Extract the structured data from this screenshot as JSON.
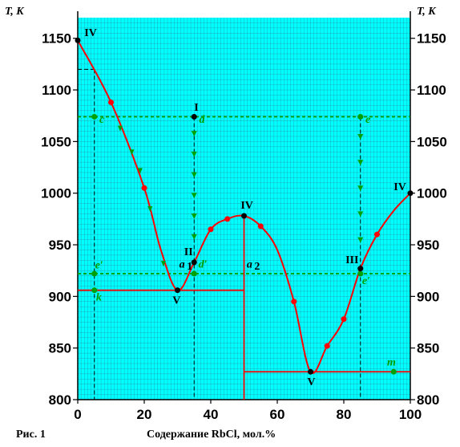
{
  "chart_data": {
    "type": "line",
    "y_axis_label_left": "T, K",
    "y_axis_label_right": "T, K",
    "xlabel": "Содержание RbCl, мол.%",
    "figure_caption": "Рис. 1",
    "xlim": [
      0,
      100
    ],
    "ylim": [
      800,
      1170
    ],
    "x_ticks": [
      0,
      20,
      40,
      60,
      80,
      100
    ],
    "y_ticks": [
      800,
      850,
      900,
      950,
      1000,
      1050,
      1100,
      1150
    ],
    "grid": true,
    "colors": {
      "background": "#00ffff",
      "grid": "#2a8fa0",
      "curve": "#ff0000",
      "green": "#00a000",
      "black": "#000000"
    },
    "liquidus": [
      {
        "x": 0,
        "y": 1148
      },
      {
        "x": 10,
        "y": 1088
      },
      {
        "x": 20,
        "y": 1005
      },
      {
        "x": 25,
        "y": 945
      },
      {
        "x": 30,
        "y": 906
      },
      {
        "x": 35,
        "y": 933
      },
      {
        "x": 40,
        "y": 965
      },
      {
        "x": 45,
        "y": 975
      },
      {
        "x": 50,
        "y": 978
      },
      {
        "x": 55,
        "y": 968
      },
      {
        "x": 60,
        "y": 945
      },
      {
        "x": 65,
        "y": 895
      },
      {
        "x": 70,
        "y": 827
      },
      {
        "x": 75,
        "y": 852
      },
      {
        "x": 80,
        "y": 878
      },
      {
        "x": 85,
        "y": 927
      },
      {
        "x": 90,
        "y": 960
      },
      {
        "x": 95,
        "y": 983
      },
      {
        "x": 100,
        "y": 1000
      }
    ],
    "red_points_x": [
      10,
      20,
      40,
      45,
      55,
      65,
      75,
      80,
      90
    ],
    "eutectic_lines": [
      {
        "x1": 0,
        "x2": 50,
        "y": 906
      },
      {
        "x1": 50,
        "x2": 100,
        "y": 827
      }
    ],
    "compound_line": {
      "x": 50,
      "y1": 800,
      "y2": 978
    },
    "dashed_horizontal": [
      {
        "y": 1074,
        "x1": 0,
        "x2": 100
      },
      {
        "y": 922,
        "x1": 0,
        "x2": 100
      }
    ],
    "dashed_vertical": [
      {
        "x": 5,
        "y_top": 1120,
        "y_bottom": 800
      },
      {
        "x": 35,
        "y_top": 1074,
        "y_bottom": 800
      },
      {
        "x": 85,
        "y_top": 1074,
        "y_bottom": 800
      }
    ],
    "dashed_short": {
      "x1": 0,
      "x2": 5,
      "y": 1120
    },
    "green_points": [
      {
        "x": 5,
        "y": 1074
      },
      {
        "x": 5,
        "y": 922
      },
      {
        "x": 5,
        "y": 906
      },
      {
        "x": 35,
        "y": 922
      },
      {
        "x": 85,
        "y": 1074
      },
      {
        "x": 85,
        "y": 922
      },
      {
        "x": 95,
        "y": 827
      }
    ],
    "black_points": [
      {
        "x": 0,
        "y": 1148
      },
      {
        "x": 30,
        "y": 906
      },
      {
        "x": 35,
        "y": 933
      },
      {
        "x": 35,
        "y": 1074
      },
      {
        "x": 50,
        "y": 978
      },
      {
        "x": 70,
        "y": 827
      },
      {
        "x": 85,
        "y": 927
      },
      {
        "x": 100,
        "y": 1000
      }
    ],
    "arrows_left": [
      {
        "x": 13,
        "y": 1063
      },
      {
        "x": 16.5,
        "y": 1040
      },
      {
        "x": 19,
        "y": 1022
      },
      {
        "x": 22,
        "y": 985
      },
      {
        "x": 26,
        "y": 932
      }
    ],
    "arrows_down": [
      {
        "x": 35,
        "y": 1058
      },
      {
        "x": 35,
        "y": 1038
      },
      {
        "x": 35,
        "y": 1018
      },
      {
        "x": 35,
        "y": 998
      },
      {
        "x": 35,
        "y": 978
      },
      {
        "x": 35,
        "y": 958
      },
      {
        "x": 85,
        "y": 1055
      },
      {
        "x": 85,
        "y": 1030
      },
      {
        "x": 85,
        "y": 1005
      },
      {
        "x": 85,
        "y": 980
      },
      {
        "x": 85,
        "y": 955
      }
    ],
    "annotations": [
      {
        "text": "IV",
        "x": 2,
        "y": 1152,
        "color": "black",
        "italic": false
      },
      {
        "text": "I",
        "x": 35,
        "y": 1080,
        "color": "black",
        "italic": false
      },
      {
        "text": "c",
        "x": 6.5,
        "y": 1068,
        "color": "green",
        "italic": true
      },
      {
        "text": "d",
        "x": 36.5,
        "y": 1068,
        "color": "green",
        "italic": true
      },
      {
        "text": "e",
        "x": 86.5,
        "y": 1068,
        "color": "green",
        "italic": true
      },
      {
        "text": "IV",
        "x": 49,
        "y": 985,
        "color": "black",
        "italic": false
      },
      {
        "text": "IV",
        "x": 95,
        "y": 1003,
        "color": "black",
        "italic": false
      },
      {
        "text": "II",
        "x": 32,
        "y": 940,
        "color": "black",
        "italic": false
      },
      {
        "text": "III",
        "x": 80.5,
        "y": 932,
        "color": "black",
        "italic": false
      },
      {
        "text": "a",
        "x": 30.5,
        "y": 928,
        "color": "black",
        "italic": true
      },
      {
        "text": "1",
        "x": 32.8,
        "y": 926,
        "color": "black",
        "italic": false
      },
      {
        "text": "d′",
        "x": 36.3,
        "y": 928,
        "color": "green",
        "italic": true
      },
      {
        "text": "a",
        "x": 50.8,
        "y": 928,
        "color": "black",
        "italic": true
      },
      {
        "text": "2",
        "x": 53.1,
        "y": 926,
        "color": "black",
        "italic": false
      },
      {
        "text": "e′",
        "x": 5.2,
        "y": 927,
        "color": "green",
        "italic": true
      },
      {
        "text": "e′",
        "x": 85.5,
        "y": 912,
        "color": "green",
        "italic": true
      },
      {
        "text": "k",
        "x": 5.5,
        "y": 896,
        "color": "green",
        "italic": true
      },
      {
        "text": "V",
        "x": 28.5,
        "y": 893,
        "color": "black",
        "italic": false
      },
      {
        "text": "V",
        "x": 69,
        "y": 814,
        "color": "black",
        "italic": false
      },
      {
        "text": "m",
        "x": 93,
        "y": 833,
        "color": "green",
        "italic": true
      }
    ]
  }
}
